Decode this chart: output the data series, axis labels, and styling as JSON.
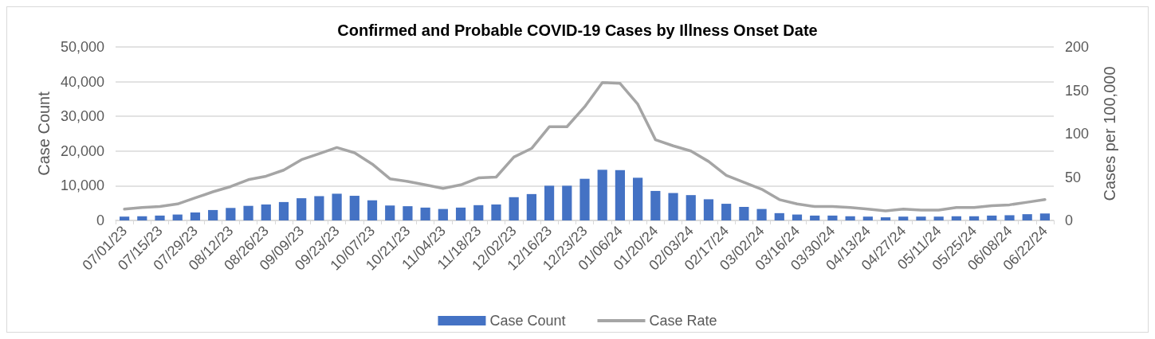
{
  "chart_data": {
    "type": "bar",
    "title": "Confirmed and Probable COVID-19 Cases by Illness Onset Date",
    "ylabel": "Case Count",
    "y2label": "Cases per 100,000",
    "categories": [
      "07/01/23",
      null,
      "07/15/23",
      null,
      "07/29/23",
      null,
      "08/12/23",
      null,
      "08/26/23",
      null,
      "09/09/23",
      null,
      "09/23/23",
      null,
      "10/07/23",
      null,
      "10/21/23",
      null,
      "11/04/23",
      null,
      "11/18/23",
      null,
      "12/02/23",
      null,
      "12/16/23",
      null,
      "12/23/23",
      null,
      "01/06/24",
      null,
      "01/20/24",
      null,
      "02/03/24",
      null,
      "02/17/24",
      null,
      "03/02/24",
      null,
      "03/16/24",
      null,
      "03/30/24",
      null,
      "04/13/24",
      null,
      "04/27/24",
      null,
      "05/11/24",
      null,
      "05/25/24",
      null,
      "06/08/24",
      null,
      "06/22/24"
    ],
    "series": [
      {
        "name": "Case Count",
        "color": "#4472c4",
        "values": [
          1100,
          1200,
          1400,
          1700,
          2300,
          3000,
          3600,
          4200,
          4600,
          5300,
          6400,
          7000,
          7700,
          7100,
          5800,
          4300,
          4100,
          3700,
          3300,
          3700,
          4400,
          4600,
          6700,
          7600,
          10000,
          10000,
          12000,
          14600,
          14500,
          12300,
          8500,
          7900,
          7300,
          6100,
          4800,
          3900,
          3300,
          2100,
          1700,
          1400,
          1400,
          1200,
          1100,
          900,
          1100,
          1100,
          1100,
          1200,
          1200,
          1400,
          1500,
          1800,
          2000
        ]
      },
      {
        "name": "Case Rate",
        "type": "line",
        "axis": "y2",
        "color": "#a5a5a5",
        "values": [
          13,
          15,
          16,
          19,
          26,
          33,
          39,
          47,
          51,
          58,
          70,
          77,
          84,
          78,
          65,
          48,
          45,
          41,
          37,
          41,
          49,
          50,
          73,
          83,
          108,
          108,
          131,
          159,
          158,
          134,
          93,
          86,
          80,
          68,
          52,
          44,
          36,
          24,
          19,
          16,
          16,
          15,
          13,
          11,
          13,
          12,
          12,
          15,
          15,
          17,
          18,
          21,
          24
        ]
      }
    ],
    "ylim": [
      0,
      50000
    ],
    "yticks": [
      0,
      {
        "value": 10000,
        "label": "10,000"
      },
      {
        "value": 20000,
        "label": "20,000"
      },
      {
        "value": 30000,
        "label": "30,000"
      },
      {
        "value": 40000,
        "label": "40,000"
      },
      {
        "value": 50000,
        "label": "50,000"
      }
    ],
    "y2lim": [
      0,
      200
    ],
    "y2ticks": [
      0,
      50,
      100,
      150,
      200
    ],
    "grid": "y",
    "legend": "bottom",
    "marker": "none",
    "line_style": "solid"
  }
}
